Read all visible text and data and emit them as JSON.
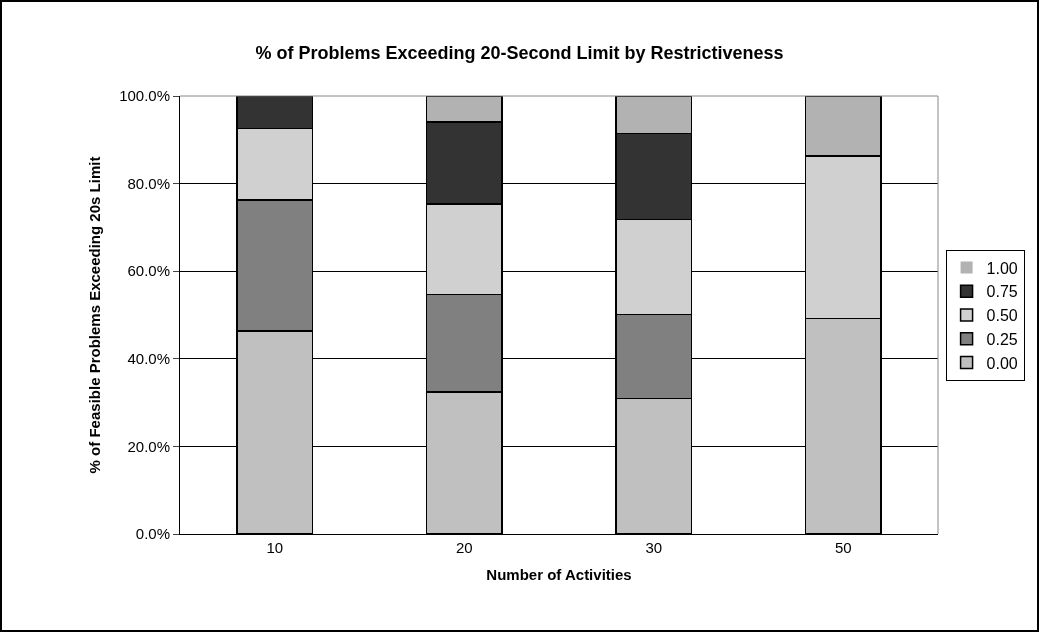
{
  "chart_data": {
    "type": "bar",
    "stacked": true,
    "title": "% of Problems Exceeding 20-Second Limit by Restrictiveness",
    "xlabel": "Number of Activities",
    "ylabel": "% of Feasible Problems Exceeding 20s Limit",
    "categories": [
      "10",
      "20",
      "30",
      "50"
    ],
    "series": [
      {
        "name": "0.00",
        "color": "#c0c0c0",
        "values": [
          46.4,
          32.4,
          30.9,
          49.2
        ]
      },
      {
        "name": "0.25",
        "color": "#808080",
        "values": [
          29.8,
          22.3,
          19.2,
          0
        ]
      },
      {
        "name": "0.50",
        "color": "#d0d0d0",
        "values": [
          16.4,
          20.7,
          21.7,
          37.1
        ]
      },
      {
        "name": "0.75",
        "color": "#333333",
        "values": [
          7.4,
          18.7,
          19.6,
          0
        ]
      },
      {
        "name": "1.00",
        "color": "#b2b2b2",
        "values": [
          0,
          5.9,
          8.6,
          13.7
        ]
      }
    ],
    "ylim": [
      0,
      100
    ],
    "yticks": [
      {
        "value": 0,
        "label": "0.0%"
      },
      {
        "value": 20,
        "label": "20.0%"
      },
      {
        "value": 40,
        "label": "40.0%"
      },
      {
        "value": 60,
        "label": "60.0%"
      },
      {
        "value": 80,
        "label": "80.0%"
      },
      {
        "value": 100,
        "label": "100.0%"
      }
    ],
    "grid": "y",
    "legend": "right"
  }
}
